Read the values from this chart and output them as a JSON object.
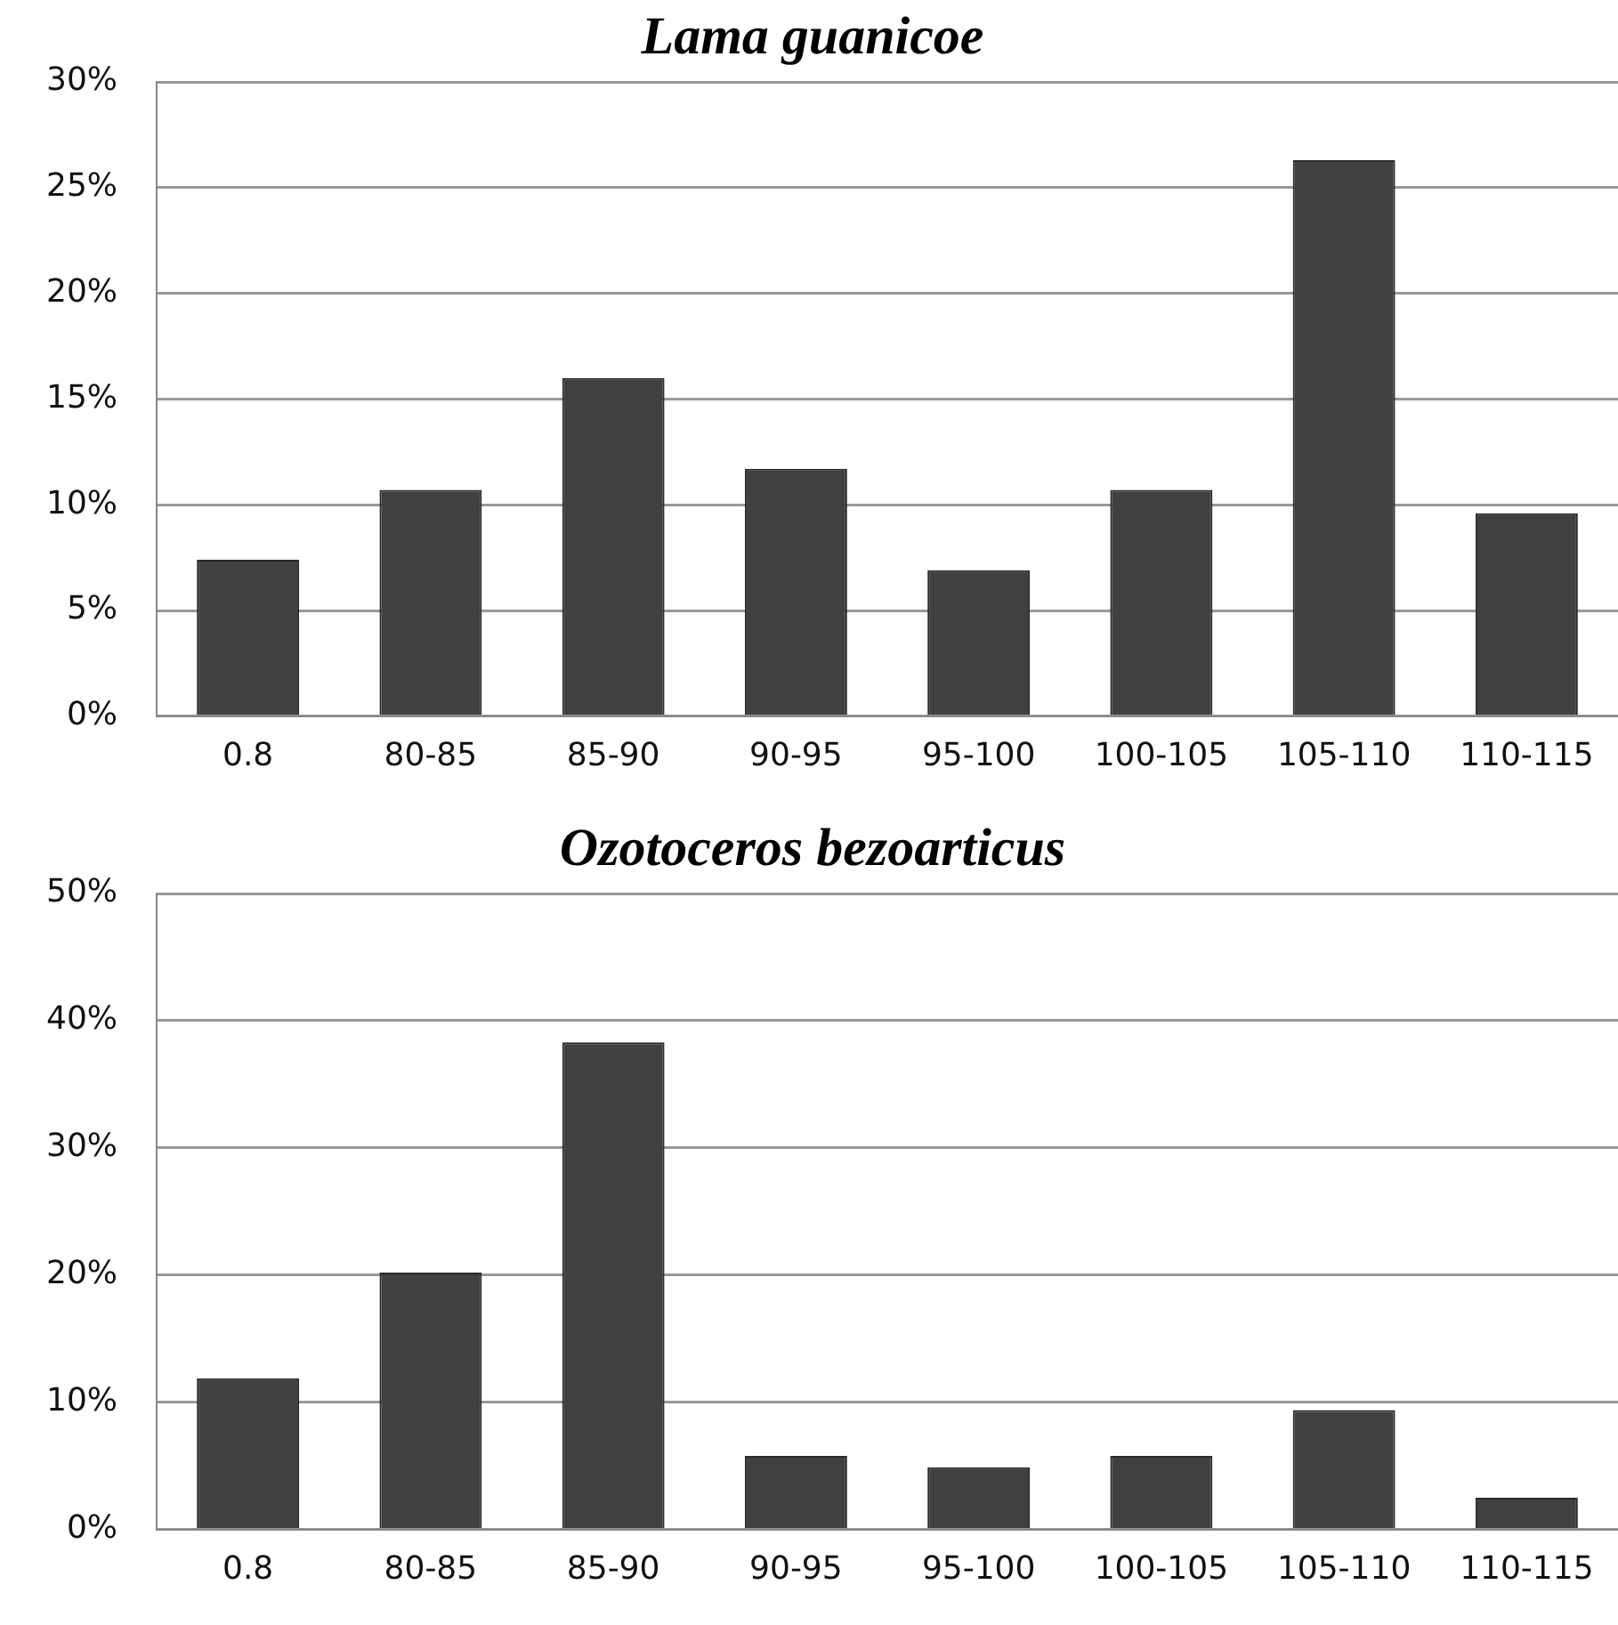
{
  "chart_data": [
    {
      "type": "bar",
      "title": "Lama guanicoe",
      "categories": [
        "0.8",
        "80-85",
        "85-90",
        "90-95",
        "95-100",
        "100-105",
        "105-110",
        "110-115"
      ],
      "values": [
        7.4,
        10.7,
        16.0,
        11.7,
        6.9,
        10.7,
        26.3,
        9.6
      ],
      "color": "#404040",
      "ylim": [
        0,
        30
      ],
      "yticks": [
        {
          "value": 0,
          "label": "0%"
        },
        {
          "value": 5,
          "label": "5%"
        },
        {
          "value": 10,
          "label": "10%"
        },
        {
          "value": 15,
          "label": "15%"
        },
        {
          "value": 20,
          "label": "20%"
        },
        {
          "value": 25,
          "label": "25%"
        },
        {
          "value": 30,
          "label": "30%"
        }
      ],
      "grid": "y",
      "legend": false
    },
    {
      "type": "bar",
      "title": "Ozotoceros bezoarticus",
      "categories": [
        "0.8",
        "80-85",
        "85-90",
        "90-95",
        "95-100",
        "100-105",
        "105-110",
        "110-115"
      ],
      "values": [
        11.9,
        20.2,
        38.3,
        5.8,
        4.9,
        5.8,
        9.4,
        2.5
      ],
      "color": "#404040",
      "ylim": [
        0,
        50
      ],
      "yticks": [
        {
          "value": 0,
          "label": "0%"
        },
        {
          "value": 10,
          "label": "10%"
        },
        {
          "value": 20,
          "label": "20%"
        },
        {
          "value": 30,
          "label": "30%"
        },
        {
          "value": 40,
          "label": "40%"
        },
        {
          "value": 50,
          "label": "50%"
        }
      ],
      "grid": "y",
      "legend": false
    }
  ]
}
